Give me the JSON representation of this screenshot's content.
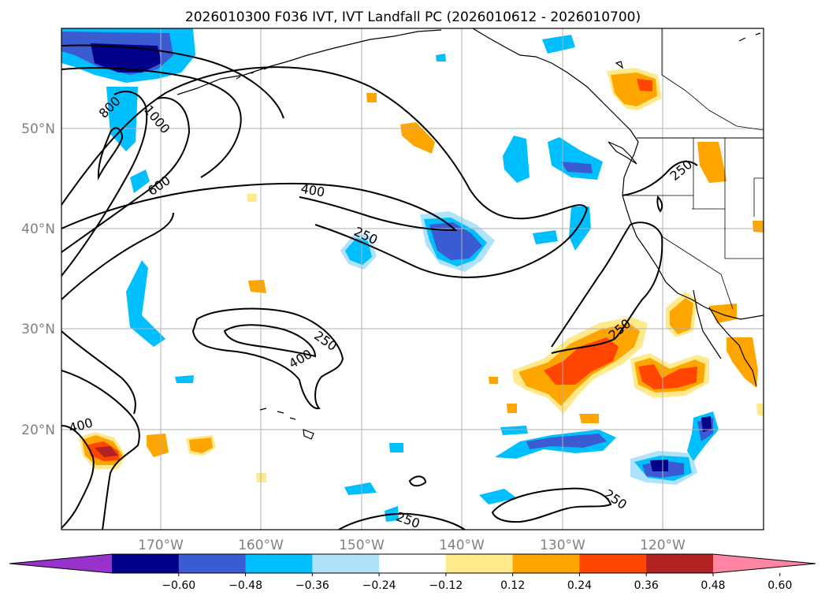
{
  "title": "2026010300 F036 IVT, IVT Landfall PC (2026010612 - 2026010700)",
  "lon_ticks": [
    "170°W",
    "160°W",
    "150°W",
    "140°W",
    "130°W",
    "120°W"
  ],
  "lat_ticks": [
    "50°N",
    "40°N",
    "30°N",
    "20°N"
  ],
  "contour_labels": [
    "800",
    "1000",
    "600",
    "400",
    "250",
    "250",
    "400",
    "250",
    "250",
    "400",
    "250",
    "250"
  ],
  "colorbar": {
    "ticks": [
      "−0.60",
      "−0.48",
      "−0.36",
      "−0.24",
      "−0.12",
      "0.12",
      "0.24",
      "0.36",
      "0.48",
      "0.60"
    ],
    "colors": [
      "#9932cc",
      "#00008b",
      "#3a5bd1",
      "#00bfff",
      "#aee3fb",
      "#ffffff",
      "#ffe98a",
      "#ffa500",
      "#ff4500",
      "#b22222",
      "#ff85a2"
    ]
  },
  "colors": {
    "neg_dark": "#00008b",
    "neg_mid": "#3a5bd1",
    "neg_light": "#00bfff",
    "neg_pale": "#aee3fb",
    "pos_pale": "#ffe98a",
    "pos_light": "#ffa500",
    "pos_mid": "#ff4500",
    "pos_dark": "#b22222"
  }
}
